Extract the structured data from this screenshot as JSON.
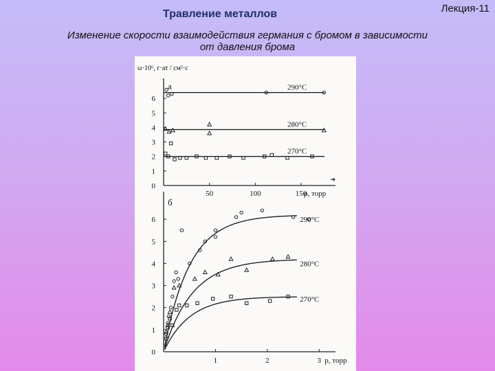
{
  "header": {
    "lecture": "Лекция-11",
    "title": "Травление металлов",
    "subtitle": "Изменение скорости взаимодействия германия с бромом в зависимости от давления брома"
  },
  "chart_data": [
    {
      "type": "scatter",
      "panel": "а",
      "ylabel": "ω·10⁶, г·ат / см²·с",
      "xlabel": "p, торр",
      "xlim": [
        0,
        180
      ],
      "ylim": [
        0,
        7
      ],
      "xticks": [
        50,
        100,
        150
      ],
      "yticks": [
        0,
        1,
        2,
        3,
        4,
        5,
        6
      ],
      "series": [
        {
          "name": "290°C",
          "marker": "circle",
          "fit": 6.4,
          "points": [
            [
              3,
              6.6
            ],
            [
              5,
              6.2
            ],
            [
              9,
              6.3
            ],
            [
              112,
              6.4
            ],
            [
              175,
              6.4
            ]
          ]
        },
        {
          "name": "280°C",
          "marker": "triangle",
          "fit": 3.85,
          "points": [
            [
              2,
              3.9
            ],
            [
              6,
              3.7
            ],
            [
              10,
              3.8
            ],
            [
              50,
              4.2
            ],
            [
              50,
              3.6
            ],
            [
              175,
              3.8
            ]
          ]
        },
        {
          "name": "270°C",
          "marker": "square",
          "fit": 2.0,
          "points": [
            [
              2,
              2.2
            ],
            [
              5,
              2.0
            ],
            [
              8,
              2.9
            ],
            [
              12,
              1.8
            ],
            [
              18,
              1.9
            ],
            [
              25,
              1.9
            ],
            [
              36,
              2.0
            ],
            [
              46,
              1.9
            ],
            [
              58,
              1.9
            ],
            [
              72,
              2.0
            ],
            [
              87,
              1.9
            ],
            [
              110,
              2.0
            ],
            [
              118,
              2.1
            ],
            [
              135,
              1.9
            ],
            [
              162,
              2.0
            ]
          ]
        }
      ]
    },
    {
      "type": "scatter",
      "panel": "б",
      "xlabel": "p, торр",
      "xlim": [
        0,
        3.5
      ],
      "ylim": [
        0,
        7
      ],
      "xticks": [
        1,
        2,
        3
      ],
      "yticks": [
        0,
        1,
        2,
        3,
        4,
        5,
        6
      ],
      "series": [
        {
          "name": "290°C",
          "marker": "circle",
          "saturation": 6.2,
          "k": 2.0,
          "points": [
            [
              0.05,
              0.8
            ],
            [
              0.08,
              1.3
            ],
            [
              0.1,
              1.6
            ],
            [
              0.14,
              2.0
            ],
            [
              0.17,
              2.5
            ],
            [
              0.2,
              3.2
            ],
            [
              0.24,
              3.6
            ],
            [
              0.28,
              3.3
            ],
            [
              0.35,
              5.5
            ],
            [
              0.5,
              4.0
            ],
            [
              0.7,
              4.6
            ],
            [
              0.8,
              5.0
            ],
            [
              1.0,
              5.2
            ],
            [
              1.0,
              5.5
            ],
            [
              1.4,
              6.1
            ],
            [
              1.5,
              6.3
            ],
            [
              1.9,
              6.4
            ],
            [
              2.5,
              6.1
            ],
            [
              2.8,
              6.0
            ]
          ]
        },
        {
          "name": "280°C",
          "marker": "triangle",
          "saturation": 4.2,
          "k": 1.8,
          "points": [
            [
              0.05,
              0.9
            ],
            [
              0.08,
              1.2
            ],
            [
              0.12,
              1.8
            ],
            [
              0.2,
              2.9
            ],
            [
              0.3,
              3.0
            ],
            [
              0.6,
              3.3
            ],
            [
              0.8,
              3.6
            ],
            [
              1.05,
              3.5
            ],
            [
              1.3,
              4.2
            ],
            [
              1.6,
              3.7
            ],
            [
              2.1,
              4.2
            ],
            [
              2.4,
              4.3
            ]
          ]
        },
        {
          "name": "270°C",
          "marker": "square",
          "saturation": 2.5,
          "k": 2.0,
          "points": [
            [
              0.05,
              0.6
            ],
            [
              0.08,
              1.1
            ],
            [
              0.12,
              1.5
            ],
            [
              0.17,
              1.2
            ],
            [
              0.25,
              1.9
            ],
            [
              0.3,
              2.1
            ],
            [
              0.45,
              2.1
            ],
            [
              0.65,
              2.2
            ],
            [
              0.95,
              2.4
            ],
            [
              1.3,
              2.5
            ],
            [
              1.6,
              2.2
            ],
            [
              2.05,
              2.3
            ],
            [
              2.4,
              2.5
            ]
          ]
        }
      ]
    }
  ]
}
